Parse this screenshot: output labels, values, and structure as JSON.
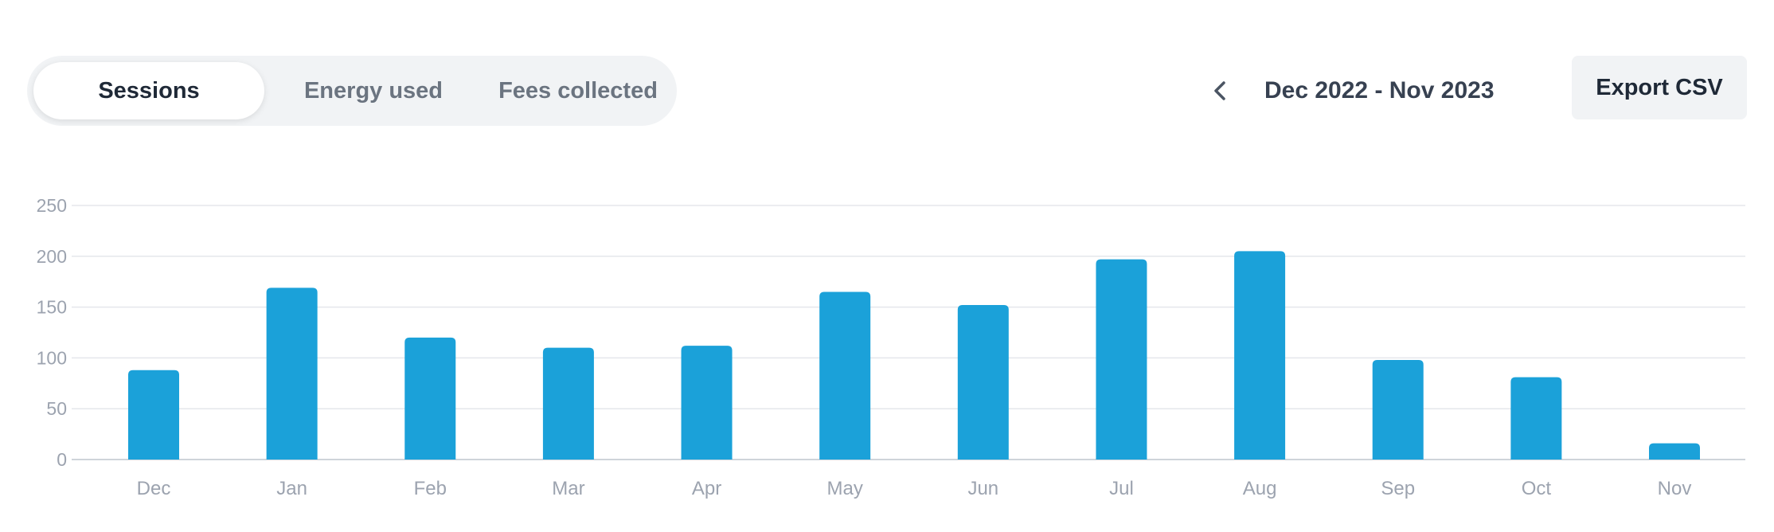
{
  "tabs": {
    "items": [
      {
        "label": "Sessions",
        "active": true
      },
      {
        "label": "Energy used",
        "active": false
      },
      {
        "label": "Fees collected",
        "active": false
      }
    ]
  },
  "date_nav": {
    "prev_icon": "chevron-left-icon",
    "range_label": "Dec 2022 - Nov 2023"
  },
  "actions": {
    "export_label": "Export CSV"
  },
  "colors": {
    "bar": "#1ba1d9",
    "tab_bg": "#f1f3f5",
    "tick_text": "#9ca3af"
  },
  "chart_data": {
    "type": "bar",
    "title": "",
    "xlabel": "",
    "ylabel": "",
    "categories": [
      "Dec",
      "Jan",
      "Feb",
      "Mar",
      "Apr",
      "May",
      "Jun",
      "Jul",
      "Aug",
      "Sep",
      "Oct",
      "Nov"
    ],
    "values": [
      88,
      169,
      120,
      110,
      112,
      165,
      152,
      197,
      205,
      98,
      81,
      16
    ],
    "ylim": [
      0,
      250
    ],
    "yticks": [
      0,
      50,
      100,
      150,
      200,
      250
    ],
    "grid": true,
    "legend": "none"
  }
}
